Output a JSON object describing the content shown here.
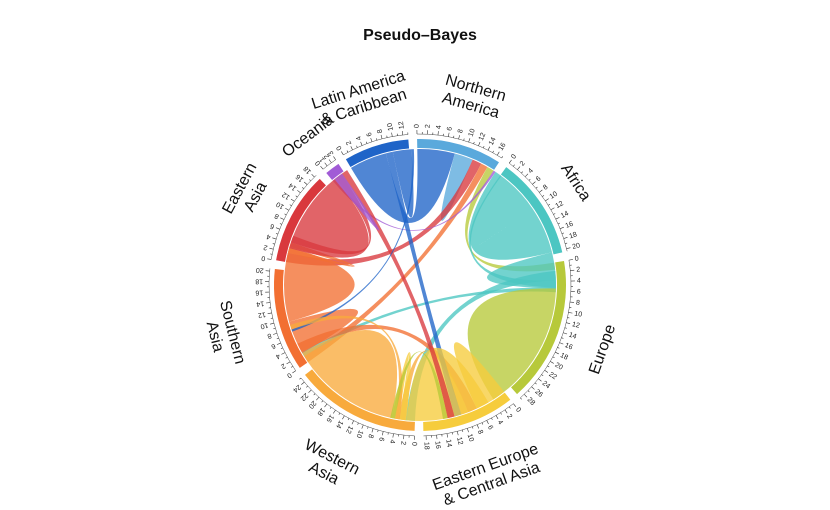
{
  "chart_data": {
    "type": "chord",
    "title": "Pseudo–Bayes",
    "regions": [
      {
        "name": "Northern America",
        "label_lines": [
          "Northern",
          "America"
        ],
        "total": 17,
        "tick_step": 2,
        "color": "#5aa9dc"
      },
      {
        "name": "Africa",
        "label_lines": [
          "Africa"
        ],
        "total": 20.5,
        "tick_step": 2,
        "color": "#4cc6c2"
      },
      {
        "name": "Europe",
        "label_lines": [
          "Europe"
        ],
        "total": 29,
        "tick_step": 2,
        "color": "#b7c93a"
      },
      {
        "name": "Eastern Europe & Central Asia",
        "label_lines": [
          "Eastern Europe",
          "& Central Asia"
        ],
        "total": 18.5,
        "tick_step": 2,
        "color": "#f6cc3c"
      },
      {
        "name": "Western Asia",
        "label_lines": [
          "Western",
          "Asia"
        ],
        "total": 25,
        "tick_step": 2,
        "color": "#f8aa3c"
      },
      {
        "name": "Southern Asia",
        "label_lines": [
          "Southern",
          "Asia"
        ],
        "total": 20.5,
        "tick_step": 2,
        "color": "#f26f32"
      },
      {
        "name": "Eastern Asia",
        "label_lines": [
          "Eastern",
          "Asia"
        ],
        "total": 18.5,
        "tick_step": 2,
        "color": "#d9383d"
      },
      {
        "name": "Oceania",
        "label_lines": [
          "Oceania"
        ],
        "total": 3,
        "tick_step": 1,
        "color": "#a15bd6"
      },
      {
        "name": "Latin America & Caribbean",
        "label_lines": [
          "Latin America",
          "& Caribbean"
        ],
        "total": 13,
        "tick_step": 2,
        "color": "#1f64c8"
      }
    ],
    "flows": [
      {
        "from": "Latin America & Caribbean",
        "to": "Northern America",
        "value": 8
      },
      {
        "from": "Northern America",
        "to": "Northern America",
        "value": 2
      },
      {
        "from": "Eastern Asia",
        "to": "Northern America",
        "value": 2
      },
      {
        "from": "Southern Asia",
        "to": "Northern America",
        "value": 1.5
      },
      {
        "from": "Europe",
        "to": "Northern America",
        "value": 1.5
      },
      {
        "from": "Oceania",
        "to": "Northern America",
        "value": 0.5
      },
      {
        "from": "Africa",
        "to": "Africa",
        "value": 10
      },
      {
        "from": "Africa",
        "to": "Europe",
        "value": 4
      },
      {
        "from": "Africa",
        "to": "Western Asia",
        "value": 2
      },
      {
        "from": "Africa",
        "to": "Northern America",
        "value": 1.5
      },
      {
        "from": "Africa",
        "to": "Southern Asia",
        "value": 1
      },
      {
        "from": "Europe",
        "to": "Europe",
        "value": 14
      },
      {
        "from": "Eastern Europe & Central Asia",
        "to": "Europe",
        "value": 4
      },
      {
        "from": "Southern Asia",
        "to": "Europe",
        "value": 2
      },
      {
        "from": "Western Asia",
        "to": "Europe",
        "value": 1.5
      },
      {
        "from": "Latin America & Caribbean",
        "to": "Europe",
        "value": 1.5
      },
      {
        "from": "Eastern Europe & Central Asia",
        "to": "Eastern Europe & Central Asia",
        "value": 9
      },
      {
        "from": "Eastern Europe & Central Asia",
        "to": "Western Asia",
        "value": 1.5
      },
      {
        "from": "Western Asia",
        "to": "Western Asia",
        "value": 12
      },
      {
        "from": "Southern Asia",
        "to": "Western Asia",
        "value": 5
      },
      {
        "from": "Southern Asia",
        "to": "Southern Asia",
        "value": 8
      },
      {
        "from": "Southern Asia",
        "to": "Eastern Asia",
        "value": 1
      },
      {
        "from": "Eastern Asia",
        "to": "Eastern Asia",
        "value": 9
      },
      {
        "from": "Eastern Asia",
        "to": "Southern Asia",
        "value": 1.5
      },
      {
        "from": "Eastern Asia",
        "to": "Europe",
        "value": 1.5
      },
      {
        "from": "Oceania",
        "to": "Oceania",
        "value": 1
      },
      {
        "from": "Latin America & Caribbean",
        "to": "Latin America & Caribbean",
        "value": 2
      },
      {
        "from": "Latin America & Caribbean",
        "to": "Western Asia",
        "value": 0.5
      },
      {
        "from": "Western Asia",
        "to": "Eastern Europe & Central Asia",
        "value": 1
      },
      {
        "from": "Europe",
        "to": "Eastern Europe & Central Asia",
        "value": 1
      }
    ]
  }
}
